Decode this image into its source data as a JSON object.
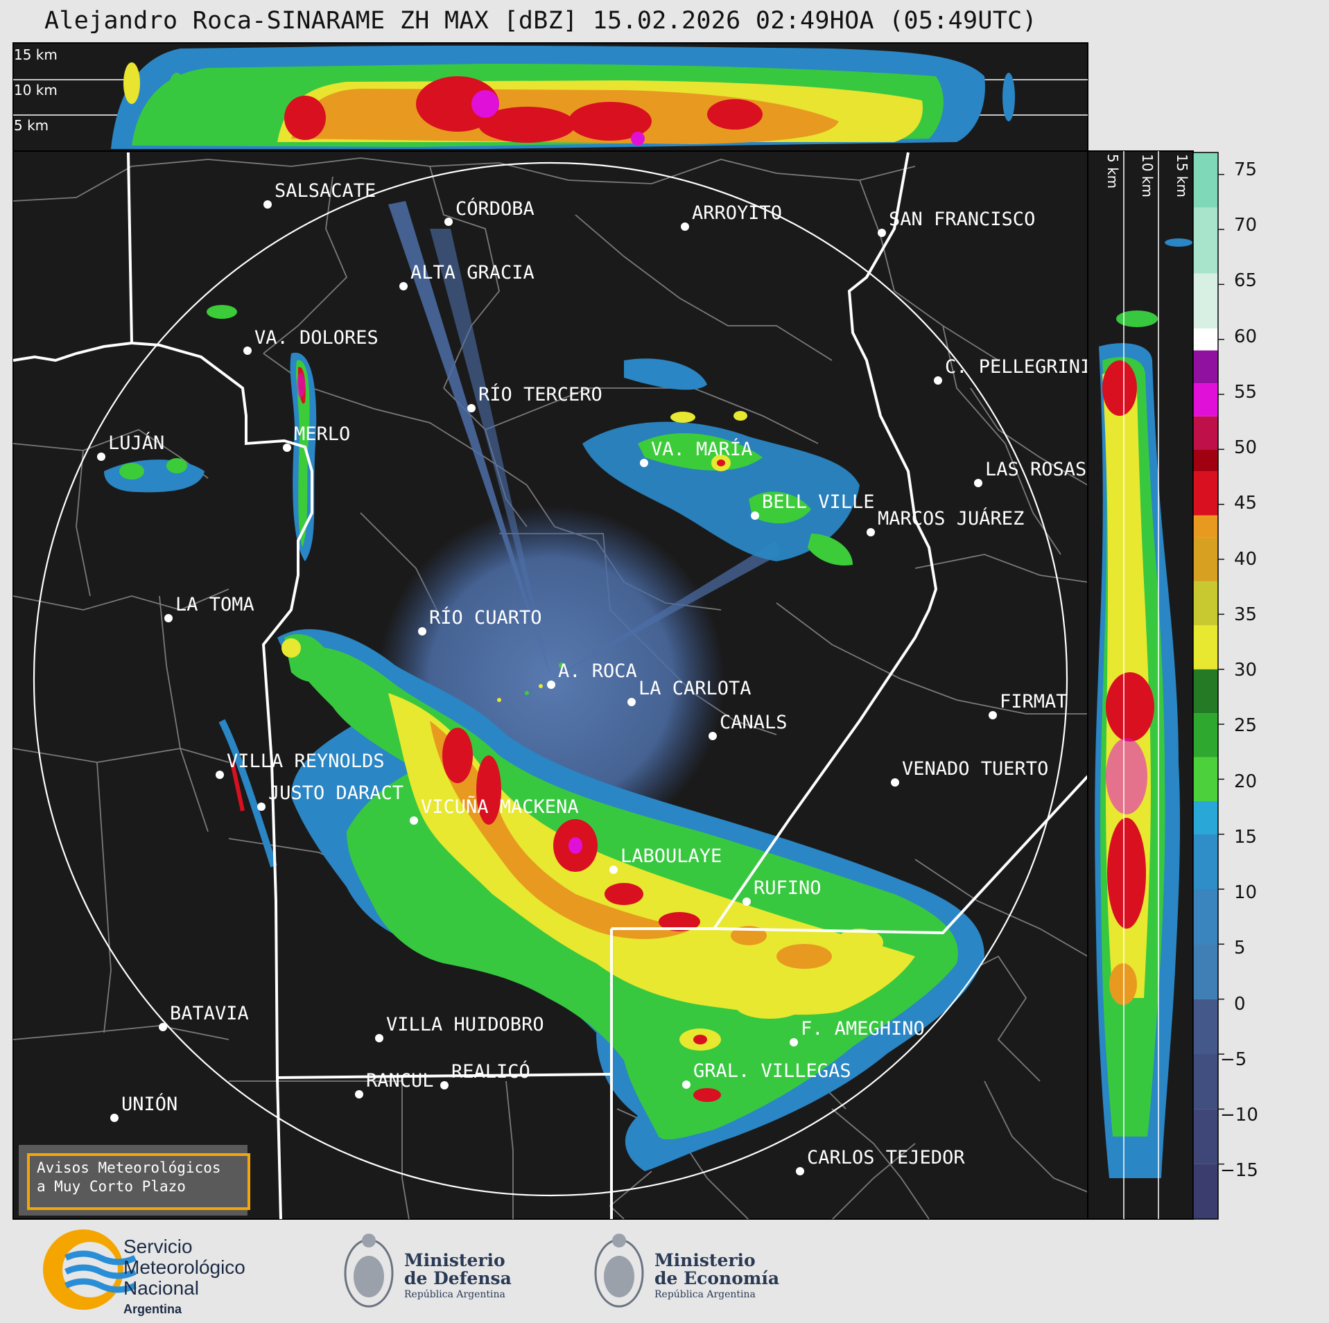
{
  "title": "Alejandro Roca-SINARAME ZH MAX [dBZ] 15.02.2026 02:49HOA (05:49UTC)",
  "top_heights": [
    "15 km",
    "10 km",
    "5 km"
  ],
  "side_heights": [
    "5 km",
    "10 km",
    "15 km"
  ],
  "colorbar": {
    "ticks": [
      "75",
      "70",
      "65",
      "60",
      "55",
      "50",
      "45",
      "40",
      "35",
      "30",
      "25",
      "20",
      "15",
      "10",
      "5",
      "0",
      "−5",
      "−10",
      "−15"
    ],
    "colors": {
      "cb_bg": "#3a3d6e",
      "blue": "#2f7fc0",
      "green": "#3ccc3a",
      "yellow": "#e8e830",
      "orange": "#e89a20",
      "red": "#d81020",
      "magenta": "#e010d8",
      "white": "#ffffff",
      "teal": "#7fd8b8"
    }
  },
  "cities": [
    {
      "label": "SALSACATE"
    },
    {
      "label": "CÓRDOBA"
    },
    {
      "label": "ARROYITO"
    },
    {
      "label": "SAN FRANCISCO"
    },
    {
      "label": "ALTA GRACIA"
    },
    {
      "label": "VA. DOLORES"
    },
    {
      "label": "C. PELLEGRINI"
    },
    {
      "label": "RÍO TERCERO"
    },
    {
      "label": "LUJÁN"
    },
    {
      "label": "MERLO"
    },
    {
      "label": "VA. MARÍA"
    },
    {
      "label": "LAS ROSAS"
    },
    {
      "label": "BELL VILLE"
    },
    {
      "label": "MARCOS JUÁREZ"
    },
    {
      "label": "LA TOMA"
    },
    {
      "label": "RÍO CUARTO"
    },
    {
      "label": "A. ROCA"
    },
    {
      "label": "LA CARLOTA"
    },
    {
      "label": "FIRMAT"
    },
    {
      "label": "CANALS"
    },
    {
      "label": "VILLA REYNOLDS"
    },
    {
      "label": "VENADO TUERTO"
    },
    {
      "label": "JUSTO DARACT"
    },
    {
      "label": "VICUÑA MACKENA"
    },
    {
      "label": "LABOULAYE"
    },
    {
      "label": "RUFINO"
    },
    {
      "label": "BATAVIA"
    },
    {
      "label": "VILLA HUIDOBRO"
    },
    {
      "label": "F. AMEGHINO"
    },
    {
      "label": "REALICÓ"
    },
    {
      "label": "RANCUL"
    },
    {
      "label": "GRAL. VILLEGAS"
    },
    {
      "label": "UNIÓN"
    },
    {
      "label": "CARLOS TEJEDOR"
    }
  ],
  "alert": {
    "line1": "Avisos Meteorológicos",
    "line2": "a Muy Corto Plazo"
  },
  "logos": {
    "smn": {
      "line1": "Servicio",
      "line2": "Meteorológico",
      "line3": "Nacional",
      "line4": "Argentina"
    },
    "defensa": {
      "line1": "Ministerio",
      "line2": "de Defensa",
      "line3": "República Argentina"
    },
    "economia": {
      "line1": "Ministerio",
      "line2": "de Economía",
      "line3": "República Argentina"
    }
  },
  "map_colors": {
    "background": "#1a1a1a",
    "province_border": "#ffffff",
    "department_border": "#7a7a7a"
  }
}
